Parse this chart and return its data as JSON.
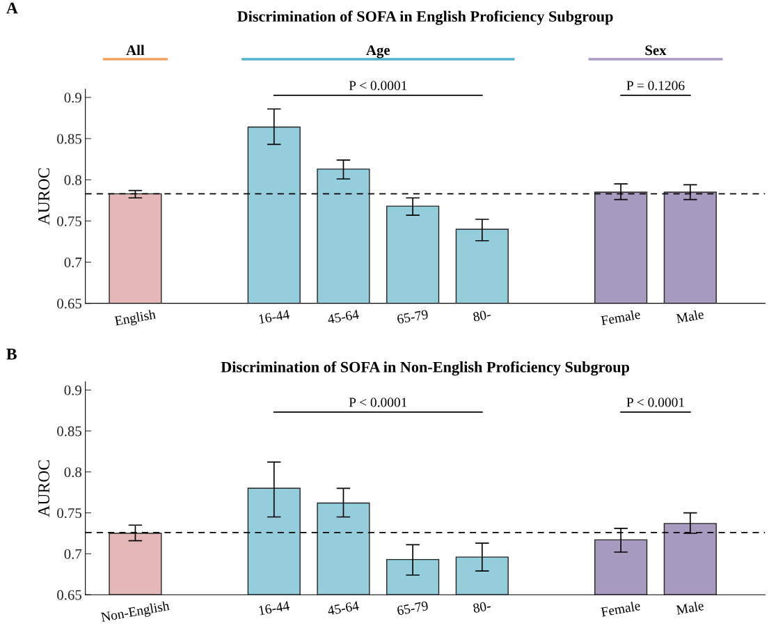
{
  "chart_data": [
    {
      "type": "bar",
      "title": "Discrimination of SOFA in English Proficiency Subgroup",
      "ylabel": "AUROC",
      "categories": [
        "English",
        null,
        "16-44",
        "45-64",
        "65-79",
        "80-",
        null,
        "Female",
        "Male"
      ],
      "values": [
        0.783,
        null,
        0.864,
        0.813,
        0.768,
        0.74,
        null,
        0.785,
        0.785
      ],
      "colors": [
        "#e4b8b7",
        null,
        "#94cddb",
        "#94cddb",
        "#94cddb",
        "#94cddb",
        null,
        "#a99abf",
        "#a99abf"
      ],
      "errors": [
        [
          0.778,
          0.787
        ],
        null,
        [
          0.843,
          0.886
        ],
        [
          0.801,
          0.824
        ],
        [
          0.757,
          0.778
        ],
        [
          0.726,
          0.752
        ],
        null,
        [
          0.776,
          0.795
        ],
        [
          0.776,
          0.794
        ]
      ],
      "ylim": [
        0.65,
        0.91
      ],
      "yticks": [
        0.65,
        0.7,
        0.75,
        0.8,
        0.85,
        0.9
      ],
      "ref_lines": [
        {
          "axis": "y",
          "value": 0.783,
          "line_style": "dashed",
          "color": "#000000"
        }
      ],
      "annotations": [
        "A",
        "All",
        "Age",
        "Sex",
        "P < 0.0001",
        "P = 0.1206"
      ],
      "grid": false
    },
    {
      "type": "bar",
      "title": "Discrimination of SOFA in Non-English Proficiency Subgroup",
      "ylabel": "AUROC",
      "categories": [
        "Non-English",
        null,
        "16-44",
        "45-64",
        "65-79",
        "80-",
        null,
        "Female",
        "Male"
      ],
      "values": [
        0.725,
        null,
        0.78,
        0.762,
        0.693,
        0.696,
        null,
        0.717,
        0.737
      ],
      "colors": [
        "#e4b8b7",
        null,
        "#94cddb",
        "#94cddb",
        "#94cddb",
        "#94cddb",
        null,
        "#a99abf",
        "#a99abf"
      ],
      "errors": [
        [
          0.716,
          0.735
        ],
        null,
        [
          0.745,
          0.812
        ],
        [
          0.745,
          0.78
        ],
        [
          0.674,
          0.711
        ],
        [
          0.679,
          0.713
        ],
        null,
        [
          0.702,
          0.731
        ],
        [
          0.725,
          0.75
        ]
      ],
      "ylim": [
        0.65,
        0.91
      ],
      "yticks": [
        0.65,
        0.7,
        0.75,
        0.8,
        0.85,
        0.9
      ],
      "ref_lines": [
        {
          "axis": "y",
          "value": 0.726,
          "line_style": "dashed",
          "color": "#000000"
        }
      ],
      "annotations": [
        "B",
        "P < 0.0001",
        "P < 0.0001"
      ],
      "grid": false
    }
  ]
}
